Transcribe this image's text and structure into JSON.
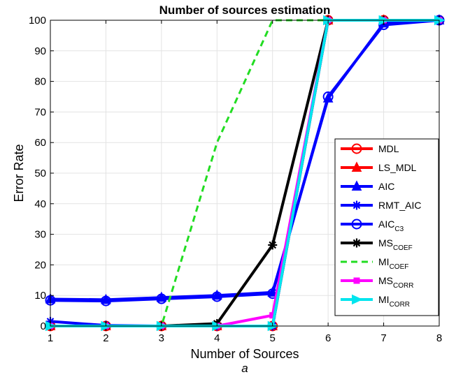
{
  "chart_data": {
    "type": "line",
    "title": "Number of sources estimation",
    "xlabel": "Number of Sources",
    "ylabel": "Error Rate",
    "caption": "a",
    "x": [
      1,
      2,
      3,
      4,
      5,
      6,
      7,
      8
    ],
    "xlim": [
      1,
      8
    ],
    "ylim": [
      0,
      100
    ],
    "xticks": [
      "1",
      "2",
      "3",
      "4",
      "5",
      "6",
      "7",
      "8"
    ],
    "yticks": [
      "0",
      "10",
      "20",
      "30",
      "40",
      "50",
      "60",
      "70",
      "80",
      "90",
      "100"
    ],
    "grid": true,
    "legend_position": "right",
    "series": [
      {
        "name": "MDL",
        "sub": "",
        "color": "#ff0000",
        "marker": "circle",
        "dash": false,
        "values": [
          0,
          0,
          0,
          0,
          0,
          100,
          100,
          100
        ]
      },
      {
        "name": "LS_MDL",
        "sub": "",
        "color": "#ff0000",
        "marker": "triangle",
        "dash": false,
        "values": [
          0,
          0,
          0,
          0,
          0,
          100,
          100,
          100
        ]
      },
      {
        "name": "AIC",
        "sub": "",
        "color": "#0000ff",
        "marker": "triangle",
        "dash": false,
        "values": [
          8.8,
          8.6,
          9.3,
          10.0,
          11.0,
          74.5,
          99.0,
          100
        ]
      },
      {
        "name": "RMT_AIC",
        "sub": "",
        "color": "#0000ff",
        "marker": "star",
        "dash": false,
        "values": [
          1.5,
          0.2,
          0,
          0,
          0,
          100,
          100,
          100
        ]
      },
      {
        "name": "AIC",
        "sub": "C3",
        "color": "#0000ff",
        "marker": "circle",
        "dash": false,
        "values": [
          8.4,
          8.2,
          8.9,
          9.6,
          10.6,
          75.0,
          98.5,
          100
        ]
      },
      {
        "name": "MS",
        "sub": "COEF",
        "color": "#000000",
        "marker": "star",
        "dash": false,
        "values": [
          0,
          0,
          0,
          0.8,
          26.5,
          100,
          100,
          100
        ]
      },
      {
        "name": "MI",
        "sub": "COEF",
        "color": "#22dd22",
        "marker": "none",
        "dash": true,
        "values": [
          0,
          0,
          0,
          60,
          100,
          100,
          100,
          100
        ]
      },
      {
        "name": "MS",
        "sub": "CORR",
        "color": "#ff00ff",
        "marker": "square",
        "dash": false,
        "values": [
          0,
          0,
          0,
          0,
          3.5,
          100,
          100,
          100
        ]
      },
      {
        "name": "MI",
        "sub": "CORR",
        "color": "#00e5ee",
        "marker": "triangle-right",
        "dash": false,
        "values": [
          0,
          0,
          0,
          0,
          0,
          100,
          100,
          100
        ]
      }
    ]
  }
}
